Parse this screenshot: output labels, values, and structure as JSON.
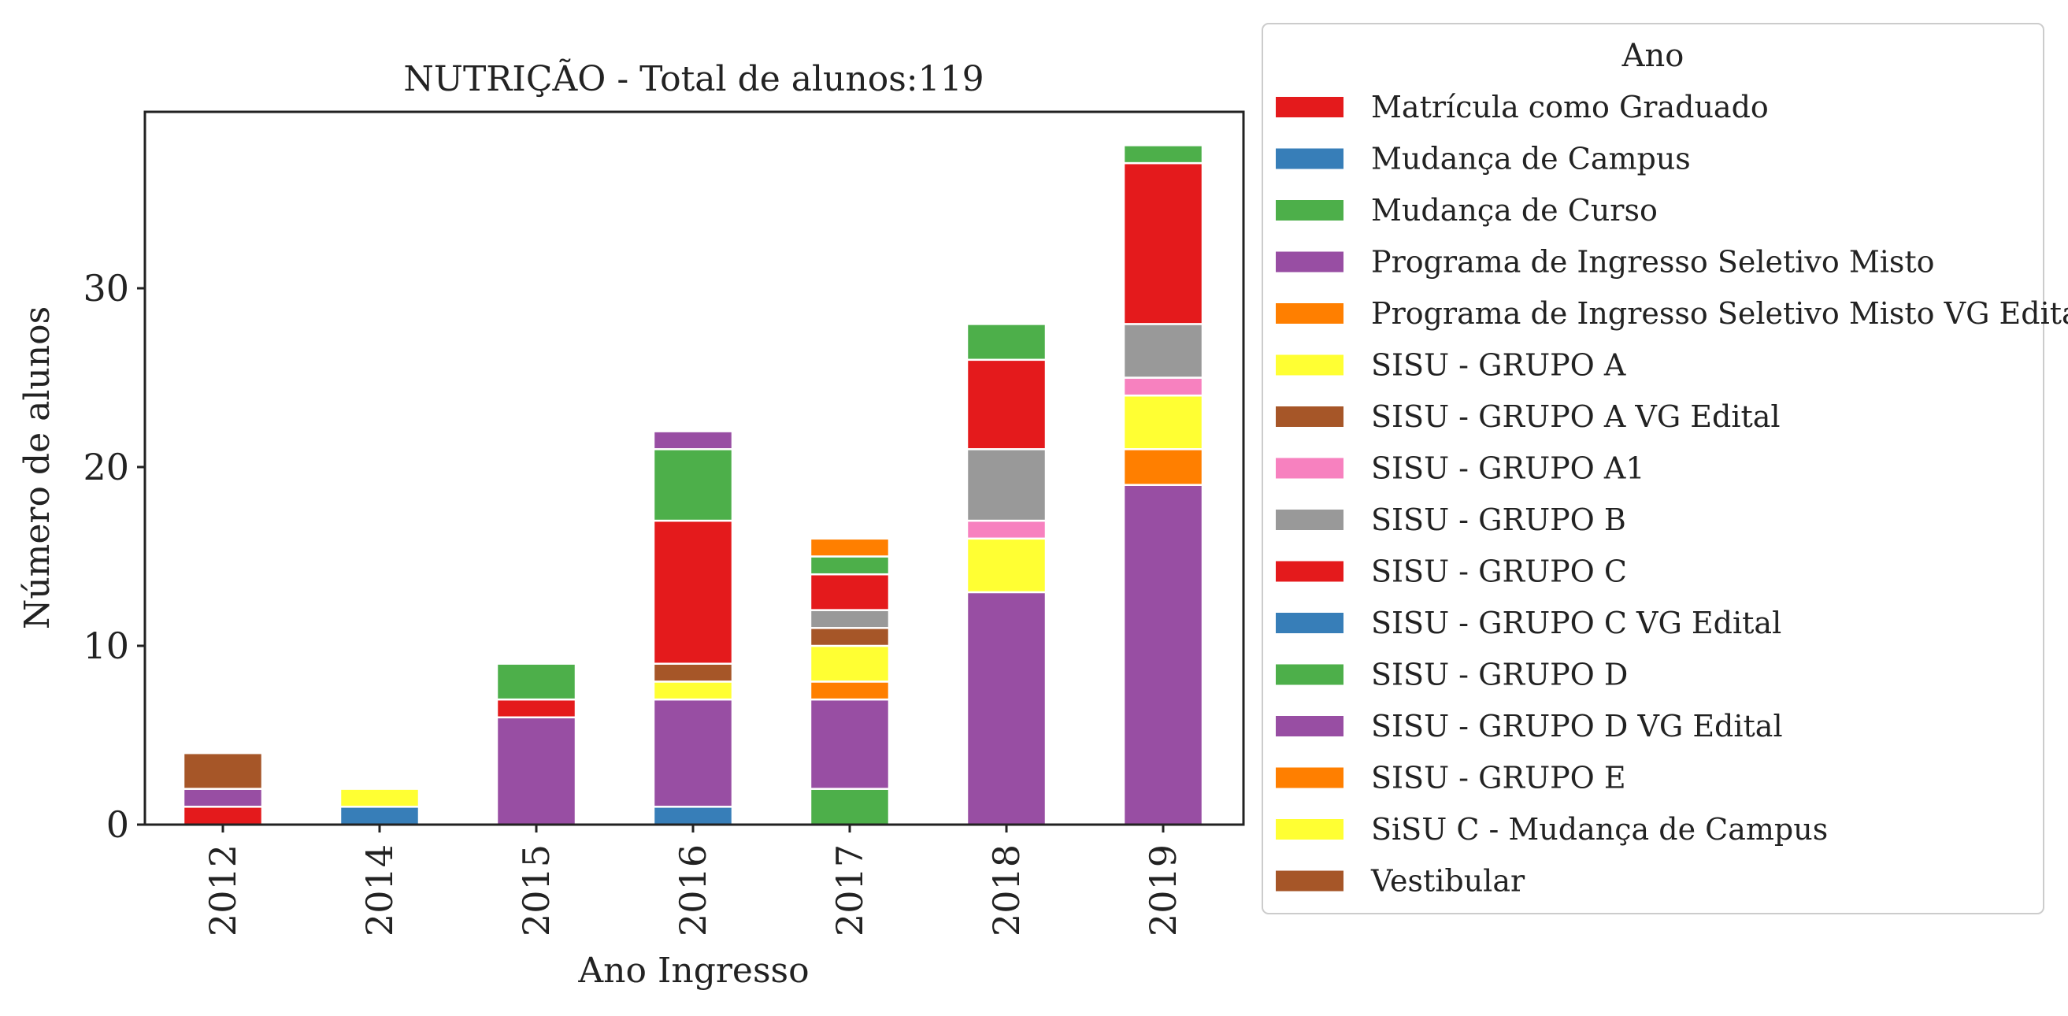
{
  "chart_data": {
    "type": "bar",
    "stacked": true,
    "title": "NUTRIÇÃO - Total de alunos:119",
    "xlabel": "Ano Ingresso",
    "ylabel": "Número de alunos",
    "categories": [
      "2012",
      "2014",
      "2015",
      "2016",
      "2017",
      "2018",
      "2019"
    ],
    "ylim": [
      0,
      40
    ],
    "yticks": [
      0,
      10,
      20,
      30
    ],
    "grid": false,
    "legend_title": "Ano",
    "legend_position": "right, outside plot",
    "series": [
      {
        "name": "Matrícula como Graduado",
        "color": "#e41a1c",
        "values": [
          1,
          0,
          0,
          0,
          0,
          0,
          0
        ]
      },
      {
        "name": "Mudança de Campus",
        "color": "#377eb8",
        "values": [
          0,
          1,
          0,
          1,
          0,
          0,
          0
        ]
      },
      {
        "name": "Mudança de Curso",
        "color": "#4daf4a",
        "values": [
          0,
          0,
          0,
          0,
          2,
          0,
          0
        ]
      },
      {
        "name": "Programa de Ingresso Seletivo Misto",
        "color": "#984ea3",
        "values": [
          1,
          0,
          6,
          6,
          5,
          13,
          19
        ]
      },
      {
        "name": "Programa de Ingresso Seletivo Misto VG Edital",
        "color": "#ff7f00",
        "values": [
          0,
          0,
          0,
          0,
          1,
          0,
          2
        ]
      },
      {
        "name": "SISU - GRUPO A",
        "color": "#ffff33",
        "values": [
          0,
          0,
          0,
          1,
          2,
          3,
          3
        ]
      },
      {
        "name": "SISU - GRUPO A VG Edital",
        "color": "#a65628",
        "values": [
          0,
          0,
          0,
          1,
          1,
          0,
          0
        ]
      },
      {
        "name": "SISU - GRUPO A1",
        "color": "#f781bf",
        "values": [
          0,
          0,
          0,
          0,
          0,
          1,
          1
        ]
      },
      {
        "name": "SISU - GRUPO B",
        "color": "#999999",
        "values": [
          0,
          0,
          0,
          0,
          1,
          4,
          3
        ]
      },
      {
        "name": "SISU - GRUPO C",
        "color": "#e41a1c",
        "values": [
          0,
          0,
          1,
          8,
          2,
          5,
          9
        ]
      },
      {
        "name": "SISU - GRUPO C VG Edital",
        "color": "#377eb8",
        "values": [
          0,
          0,
          0,
          0,
          0,
          0,
          0
        ]
      },
      {
        "name": "SISU - GRUPO D",
        "color": "#4daf4a",
        "values": [
          0,
          0,
          2,
          4,
          1,
          2,
          1
        ]
      },
      {
        "name": "SISU - GRUPO D VG Edital",
        "color": "#984ea3",
        "values": [
          0,
          0,
          0,
          1,
          0,
          0,
          0
        ]
      },
      {
        "name": "SISU - GRUPO E",
        "color": "#ff7f00",
        "values": [
          0,
          0,
          0,
          0,
          1,
          0,
          0
        ]
      },
      {
        "name": "SiSU C - Mudança de Campus",
        "color": "#ffff33",
        "values": [
          0,
          1,
          0,
          0,
          0,
          0,
          0
        ]
      },
      {
        "name": "Vestibular",
        "color": "#a65628",
        "values": [
          2,
          0,
          0,
          0,
          0,
          0,
          0
        ]
      }
    ]
  }
}
